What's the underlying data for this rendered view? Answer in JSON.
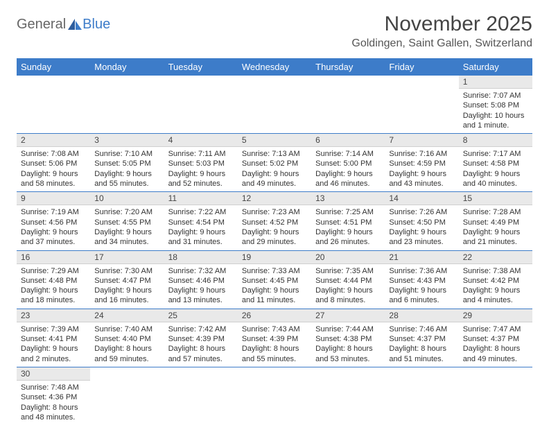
{
  "logo": {
    "text1": "General",
    "text2": "Blue"
  },
  "title": "November 2025",
  "location": "Goldingen, Saint Gallen, Switzerland",
  "colors": {
    "header_bg": "#3d7cc9",
    "header_text": "#ffffff",
    "daynum_bg": "#e9e9e9",
    "row_border": "#3d7cc9",
    "body_text": "#333333"
  },
  "weekdays": [
    "Sunday",
    "Monday",
    "Tuesday",
    "Wednesday",
    "Thursday",
    "Friday",
    "Saturday"
  ],
  "first_weekday_index": 6,
  "days": [
    {
      "n": 1,
      "sunrise": "7:07 AM",
      "sunset": "5:08 PM",
      "daylight": "10 hours and 1 minute."
    },
    {
      "n": 2,
      "sunrise": "7:08 AM",
      "sunset": "5:06 PM",
      "daylight": "9 hours and 58 minutes."
    },
    {
      "n": 3,
      "sunrise": "7:10 AM",
      "sunset": "5:05 PM",
      "daylight": "9 hours and 55 minutes."
    },
    {
      "n": 4,
      "sunrise": "7:11 AM",
      "sunset": "5:03 PM",
      "daylight": "9 hours and 52 minutes."
    },
    {
      "n": 5,
      "sunrise": "7:13 AM",
      "sunset": "5:02 PM",
      "daylight": "9 hours and 49 minutes."
    },
    {
      "n": 6,
      "sunrise": "7:14 AM",
      "sunset": "5:00 PM",
      "daylight": "9 hours and 46 minutes."
    },
    {
      "n": 7,
      "sunrise": "7:16 AM",
      "sunset": "4:59 PM",
      "daylight": "9 hours and 43 minutes."
    },
    {
      "n": 8,
      "sunrise": "7:17 AM",
      "sunset": "4:58 PM",
      "daylight": "9 hours and 40 minutes."
    },
    {
      "n": 9,
      "sunrise": "7:19 AM",
      "sunset": "4:56 PM",
      "daylight": "9 hours and 37 minutes."
    },
    {
      "n": 10,
      "sunrise": "7:20 AM",
      "sunset": "4:55 PM",
      "daylight": "9 hours and 34 minutes."
    },
    {
      "n": 11,
      "sunrise": "7:22 AM",
      "sunset": "4:54 PM",
      "daylight": "9 hours and 31 minutes."
    },
    {
      "n": 12,
      "sunrise": "7:23 AM",
      "sunset": "4:52 PM",
      "daylight": "9 hours and 29 minutes."
    },
    {
      "n": 13,
      "sunrise": "7:25 AM",
      "sunset": "4:51 PM",
      "daylight": "9 hours and 26 minutes."
    },
    {
      "n": 14,
      "sunrise": "7:26 AM",
      "sunset": "4:50 PM",
      "daylight": "9 hours and 23 minutes."
    },
    {
      "n": 15,
      "sunrise": "7:28 AM",
      "sunset": "4:49 PM",
      "daylight": "9 hours and 21 minutes."
    },
    {
      "n": 16,
      "sunrise": "7:29 AM",
      "sunset": "4:48 PM",
      "daylight": "9 hours and 18 minutes."
    },
    {
      "n": 17,
      "sunrise": "7:30 AM",
      "sunset": "4:47 PM",
      "daylight": "9 hours and 16 minutes."
    },
    {
      "n": 18,
      "sunrise": "7:32 AM",
      "sunset": "4:46 PM",
      "daylight": "9 hours and 13 minutes."
    },
    {
      "n": 19,
      "sunrise": "7:33 AM",
      "sunset": "4:45 PM",
      "daylight": "9 hours and 11 minutes."
    },
    {
      "n": 20,
      "sunrise": "7:35 AM",
      "sunset": "4:44 PM",
      "daylight": "9 hours and 8 minutes."
    },
    {
      "n": 21,
      "sunrise": "7:36 AM",
      "sunset": "4:43 PM",
      "daylight": "9 hours and 6 minutes."
    },
    {
      "n": 22,
      "sunrise": "7:38 AM",
      "sunset": "4:42 PM",
      "daylight": "9 hours and 4 minutes."
    },
    {
      "n": 23,
      "sunrise": "7:39 AM",
      "sunset": "4:41 PM",
      "daylight": "9 hours and 2 minutes."
    },
    {
      "n": 24,
      "sunrise": "7:40 AM",
      "sunset": "4:40 PM",
      "daylight": "8 hours and 59 minutes."
    },
    {
      "n": 25,
      "sunrise": "7:42 AM",
      "sunset": "4:39 PM",
      "daylight": "8 hours and 57 minutes."
    },
    {
      "n": 26,
      "sunrise": "7:43 AM",
      "sunset": "4:39 PM",
      "daylight": "8 hours and 55 minutes."
    },
    {
      "n": 27,
      "sunrise": "7:44 AM",
      "sunset": "4:38 PM",
      "daylight": "8 hours and 53 minutes."
    },
    {
      "n": 28,
      "sunrise": "7:46 AM",
      "sunset": "4:37 PM",
      "daylight": "8 hours and 51 minutes."
    },
    {
      "n": 29,
      "sunrise": "7:47 AM",
      "sunset": "4:37 PM",
      "daylight": "8 hours and 49 minutes."
    },
    {
      "n": 30,
      "sunrise": "7:48 AM",
      "sunset": "4:36 PM",
      "daylight": "8 hours and 48 minutes."
    }
  ],
  "labels": {
    "sunrise": "Sunrise:",
    "sunset": "Sunset:",
    "daylight": "Daylight:"
  }
}
